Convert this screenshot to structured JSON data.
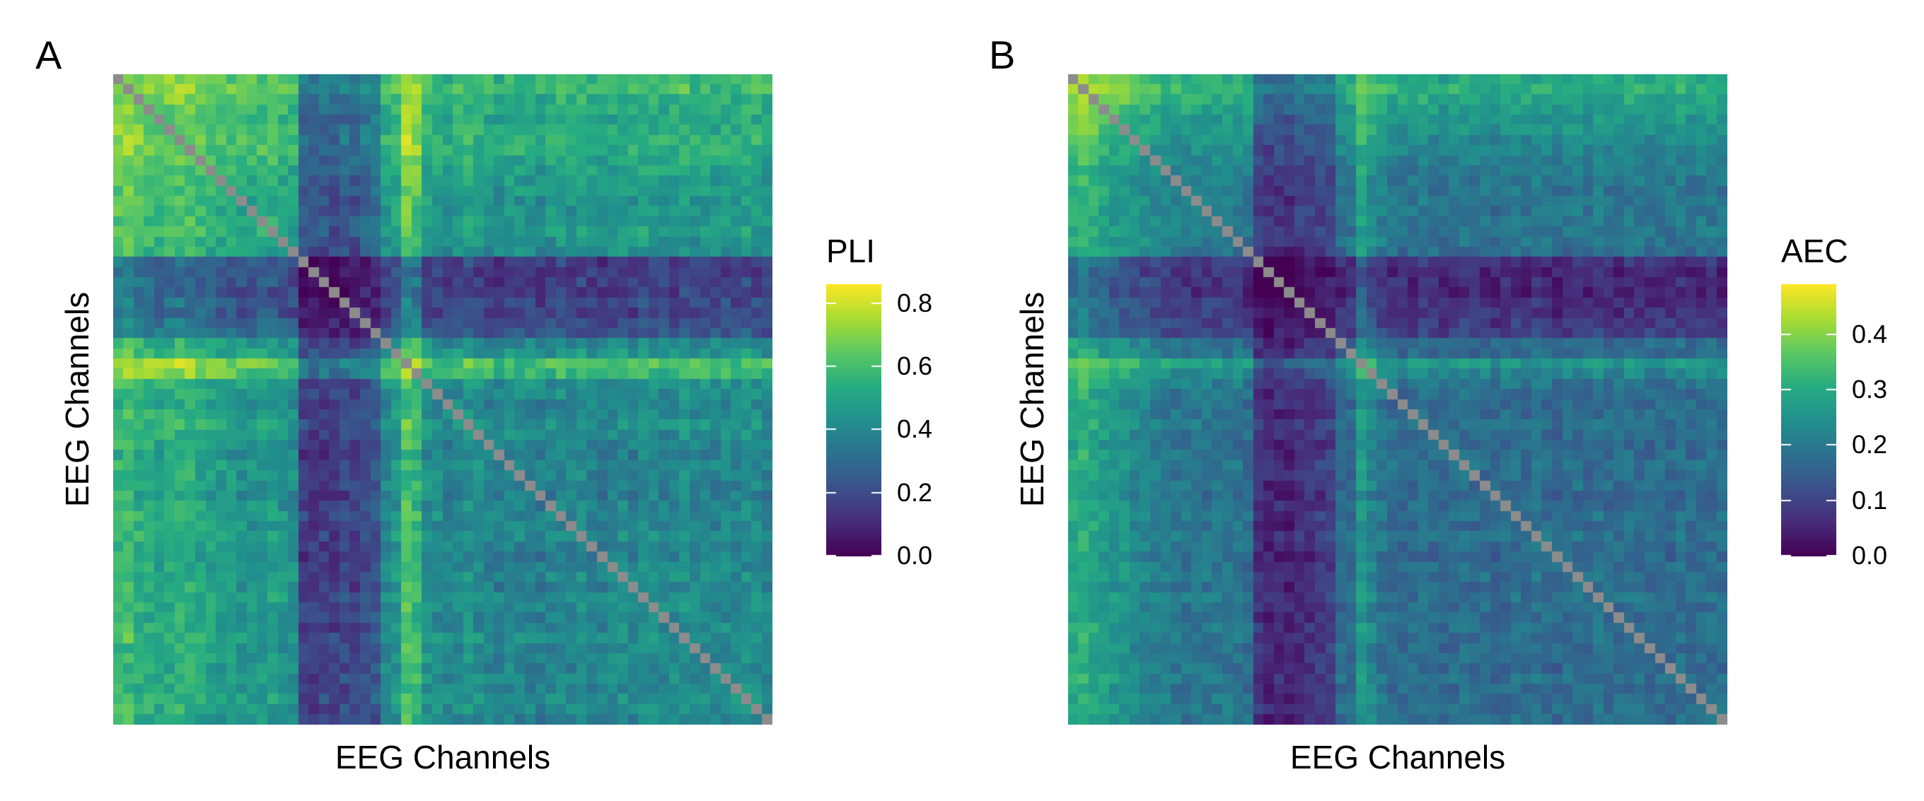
{
  "chart_data": [
    {
      "panel": "A",
      "type": "heatmap",
      "xlabel": "EEG Channels",
      "ylabel": "EEG Channels",
      "legend_title": "PLI",
      "legend_placement": "right",
      "colorscale": "viridis",
      "colorbar_range": [
        0.0,
        0.86
      ],
      "colorbar_ticks": [
        "0.0",
        "0.2",
        "0.4",
        "0.6",
        "0.8"
      ],
      "colorbar_tick_values": [
        0.0,
        0.2,
        0.4,
        0.6,
        0.8
      ],
      "diagonal_color": "#8c8c8c",
      "n_channels": 64,
      "matrix_symmetric": true,
      "grid": false,
      "background": 0.38,
      "channel_strength": [
        0.18,
        0.2,
        0.16,
        0.14,
        0.12,
        0.14,
        0.16,
        0.15,
        0.12,
        0.1,
        0.08,
        0.08,
        0.06,
        0.06,
        0.07,
        0.08,
        0.05,
        0.04,
        -0.22,
        -0.24,
        -0.22,
        -0.24,
        -0.2,
        -0.22,
        -0.18,
        -0.16,
        0.02,
        0.06,
        0.22,
        0.18,
        0.04,
        0.02,
        0.0,
        0.02,
        0.04,
        0.02,
        0.0,
        -0.02,
        0.02,
        0.0,
        0.0,
        -0.02,
        0.0,
        0.02,
        0.0,
        0.02,
        0.0,
        -0.02,
        0.0,
        0.02,
        0.0,
        0.04,
        0.02,
        0.0,
        0.02,
        0.04,
        0.0,
        0.02,
        0.0,
        0.02,
        0.0,
        0.04,
        0.02,
        0.0
      ],
      "noise": 0.07
    },
    {
      "panel": "B",
      "type": "heatmap",
      "xlabel": "EEG Channels",
      "ylabel": "EEG Channels",
      "legend_title": "AEC",
      "legend_placement": "right",
      "colorscale": "viridis",
      "colorbar_range": [
        0.0,
        0.49
      ],
      "colorbar_ticks": [
        "0.0",
        "0.1",
        "0.2",
        "0.3",
        "0.4"
      ],
      "colorbar_tick_values": [
        0.0,
        0.1,
        0.2,
        0.3,
        0.4
      ],
      "diagonal_color": "#8c8c8c",
      "n_channels": 64,
      "matrix_symmetric": true,
      "grid": false,
      "background": 0.17,
      "channel_strength": [
        0.12,
        0.14,
        0.12,
        0.1,
        0.08,
        0.08,
        0.06,
        0.05,
        0.04,
        0.03,
        0.02,
        0.02,
        0.02,
        0.02,
        0.02,
        0.02,
        0.02,
        0.0,
        -0.1,
        -0.12,
        -0.11,
        -0.12,
        -0.1,
        -0.1,
        -0.09,
        -0.08,
        0.0,
        0.0,
        0.09,
        0.05,
        0.02,
        0.0,
        0.0,
        0.0,
        0.01,
        0.0,
        -0.01,
        0.0,
        0.01,
        0.0,
        0.0,
        -0.01,
        0.0,
        0.01,
        0.0,
        0.01,
        0.0,
        -0.01,
        0.0,
        0.01,
        0.0,
        0.01,
        0.0,
        0.0,
        0.01,
        0.01,
        0.0,
        0.0,
        0.0,
        0.01,
        0.0,
        0.01,
        0.01,
        0.0
      ],
      "noise": 0.035
    }
  ],
  "panels": [
    {
      "label": "A"
    },
    {
      "label": "B"
    }
  ]
}
